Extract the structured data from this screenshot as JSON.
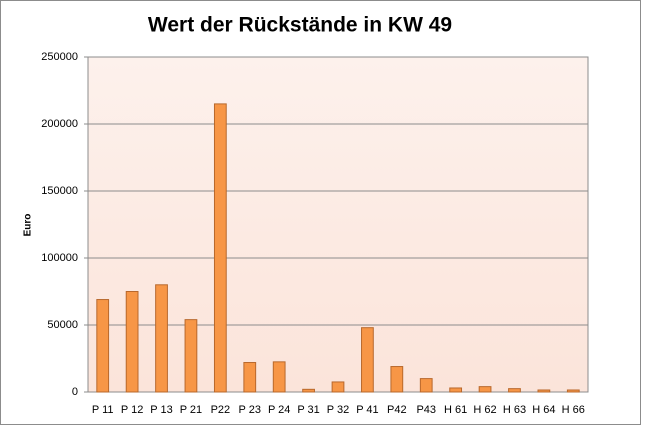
{
  "chart_data": {
    "type": "bar",
    "title": "Wert der Rückstände in KW 49",
    "y_label": "Euro",
    "categories": [
      "P 11",
      "P 12",
      "P 13",
      "P 21",
      "P22",
      "P 23",
      "P 24",
      "P 31",
      "P 32",
      "P 41",
      "P42",
      "P43",
      "H 61",
      "H 62",
      "H 63",
      "H 64",
      "H 66"
    ],
    "values": [
      69000,
      75000,
      80000,
      54000,
      215000,
      22000,
      22500,
      2000,
      7500,
      48000,
      19000,
      10000,
      3000,
      4000,
      2500,
      1500,
      1500
    ],
    "color": "#f79646",
    "ylim": [
      0,
      250000
    ],
    "yticks": [
      0,
      50000,
      100000,
      150000,
      200000,
      250000
    ],
    "grid": true
  }
}
